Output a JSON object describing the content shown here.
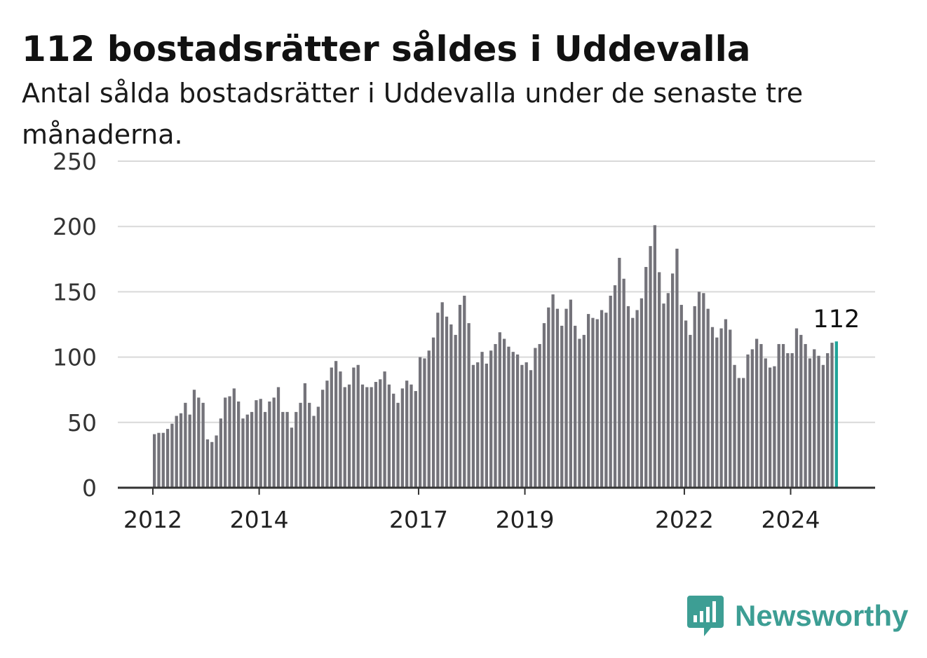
{
  "title": "112 bostadsrätter såldes i Uddevalla",
  "subtitle": "Antal sålda bostadsrätter i Uddevalla under de senaste tre månaderna.",
  "brand": "Newsworthy",
  "colors": {
    "bar": "#74737a",
    "highlight": "#1fa39a",
    "grid": "#d9d9d9",
    "axis": "#333333",
    "brand": "#3d9e94"
  },
  "chart_data": {
    "type": "bar",
    "title": "112 bostadsrätter såldes i Uddevalla",
    "subtitle": "Antal sålda bostadsrätter i Uddevalla under de senaste tre månaderna.",
    "xlabel": "",
    "ylabel": "",
    "ylim": [
      0,
      250
    ],
    "yticks": [
      "0",
      "50",
      "100",
      "150",
      "200",
      "250"
    ],
    "xticks": [
      "2012",
      "2014",
      "2017",
      "2019",
      "2022",
      "2024"
    ],
    "grid": true,
    "frequency": "monthly",
    "start": "2012-01",
    "end": "2024-12",
    "highlight_label": "112",
    "values": [
      41,
      42,
      42,
      45,
      49,
      55,
      57,
      65,
      56,
      75,
      69,
      65,
      37,
      35,
      40,
      53,
      69,
      70,
      76,
      66,
      53,
      56,
      58,
      67,
      68,
      58,
      66,
      69,
      77,
      58,
      58,
      46,
      58,
      65,
      80,
      65,
      55,
      62,
      75,
      82,
      92,
      97,
      89,
      77,
      79,
      92,
      94,
      79,
      77,
      77,
      81,
      83,
      89,
      79,
      72,
      65,
      76,
      82,
      79,
      74,
      100,
      99,
      105,
      115,
      134,
      142,
      131,
      125,
      117,
      140,
      147,
      126,
      94,
      96,
      104,
      95,
      105,
      110,
      119,
      114,
      108,
      104,
      102,
      94,
      96,
      90,
      107,
      110,
      126,
      138,
      148,
      137,
      124,
      137,
      144,
      124,
      114,
      117,
      133,
      130,
      129,
      136,
      134,
      147,
      155,
      176,
      160,
      139,
      130,
      136,
      145,
      169,
      185,
      201,
      165,
      141,
      149,
      164,
      183,
      140,
      128,
      117,
      139,
      150,
      149,
      137,
      123,
      115,
      122,
      129,
      121,
      94,
      84,
      84,
      102,
      106,
      114,
      110,
      99,
      92,
      93,
      110,
      110,
      103,
      103,
      122,
      117,
      110,
      99,
      106,
      101,
      94,
      103,
      111,
      112
    ]
  }
}
